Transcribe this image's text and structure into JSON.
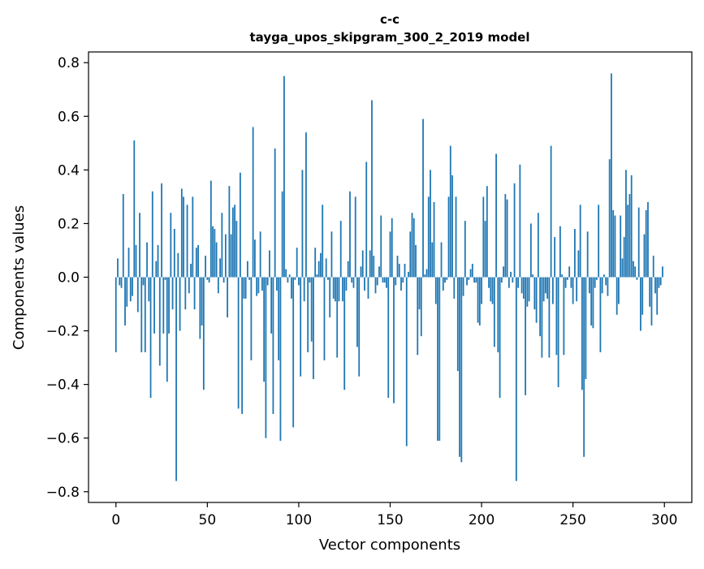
{
  "chart_data": {
    "type": "bar",
    "title_line1": "c-c",
    "title_line2": "tayga_upos_skipgram_300_2_2019 model",
    "xlabel": "Vector components",
    "ylabel": "Components values",
    "xlim": [
      -15,
      315
    ],
    "ylim": [
      -0.84,
      0.84
    ],
    "x_ticks": [
      0,
      50,
      100,
      150,
      200,
      250,
      300
    ],
    "x_tick_labels": [
      "0",
      "50",
      "100",
      "150",
      "200",
      "250",
      "300"
    ],
    "y_ticks": [
      0.8,
      0.6,
      0.4,
      0.2,
      0.0,
      -0.2,
      -0.4,
      -0.6,
      -0.8
    ],
    "y_tick_labels": [
      "0.8",
      "0.6",
      "0.4",
      "0.2",
      "0.0",
      "−0.2",
      "−0.4",
      "−0.6",
      "−0.8"
    ],
    "bar_color": "#1f77b4",
    "grid": false,
    "x": "0..299",
    "values": [
      -0.28,
      0.07,
      -0.03,
      -0.04,
      0.31,
      -0.18,
      -0.11,
      0.11,
      -0.09,
      -0.07,
      0.51,
      0.12,
      -0.13,
      0.24,
      -0.28,
      -0.03,
      -0.28,
      0.13,
      -0.09,
      -0.45,
      0.32,
      -0.21,
      0.06,
      0.12,
      -0.33,
      0.35,
      -0.21,
      -0.01,
      -0.39,
      -0.21,
      0.24,
      -0.12,
      0.18,
      -0.76,
      0.09,
      -0.2,
      0.33,
      0.3,
      -0.12,
      0.27,
      -0.06,
      0.05,
      0.3,
      -0.12,
      0.11,
      0.12,
      -0.23,
      -0.18,
      -0.42,
      0.08,
      -0.01,
      -0.02,
      0.36,
      0.19,
      0.18,
      0.13,
      -0.06,
      0.07,
      0.24,
      -0.02,
      0.16,
      -0.15,
      0.34,
      0.16,
      0.26,
      0.27,
      0.21,
      -0.49,
      0.39,
      -0.51,
      -0.08,
      -0.08,
      0.06,
      -0.01,
      -0.31,
      0.56,
      0.14,
      -0.07,
      -0.06,
      0.17,
      -0.05,
      -0.39,
      -0.6,
      -0.03,
      0.1,
      -0.21,
      -0.51,
      0.48,
      -0.05,
      -0.31,
      -0.61,
      0.32,
      0.75,
      0.03,
      -0.02,
      0.01,
      -0.08,
      -0.56,
      -0.01,
      0.11,
      -0.03,
      -0.37,
      0.4,
      -0.09,
      0.54,
      -0.28,
      -0.02,
      -0.24,
      -0.38,
      0.11,
      0.01,
      0.06,
      0.09,
      0.27,
      -0.31,
      0.07,
      -0.01,
      -0.15,
      0.17,
      -0.08,
      -0.09,
      -0.3,
      -0.09,
      0.21,
      -0.09,
      -0.42,
      -0.05,
      0.06,
      0.32,
      -0.02,
      -0.04,
      0.3,
      -0.26,
      -0.37,
      0.04,
      0.1,
      -0.05,
      0.43,
      -0.08,
      0.1,
      0.66,
      0.08,
      -0.06,
      -0.03,
      0.04,
      0.23,
      -0.02,
      -0.02,
      -0.04,
      -0.45,
      0.17,
      0.22,
      -0.47,
      -0.03,
      0.08,
      0.05,
      -0.05,
      -0.02,
      0.05,
      -0.63,
      0.02,
      0.17,
      0.24,
      0.22,
      0.12,
      -0.29,
      -0.12,
      -0.22,
      0.59,
      0.01,
      0.03,
      0.3,
      0.4,
      0.13,
      0.28,
      -0.1,
      -0.61,
      -0.61,
      0.13,
      -0.05,
      -0.02,
      -0.01,
      0.3,
      0.49,
      0.38,
      -0.08,
      0.3,
      -0.35,
      -0.67,
      -0.69,
      -0.07,
      0.21,
      -0.03,
      -0.01,
      0.03,
      0.05,
      -0.02,
      -0.02,
      -0.17,
      -0.18,
      -0.1,
      0.3,
      0.21,
      0.34,
      -0.04,
      -0.09,
      -0.1,
      -0.26,
      0.46,
      -0.28,
      -0.45,
      -0.02,
      0.04,
      0.31,
      0.29,
      -0.04,
      0.02,
      -0.02,
      0.35,
      -0.76,
      -0.04,
      0.42,
      -0.06,
      -0.08,
      -0.44,
      -0.11,
      -0.09,
      0.2,
      0.01,
      -0.12,
      -0.17,
      0.24,
      -0.22,
      -0.3,
      -0.09,
      -0.06,
      -0.08,
      -0.3,
      0.49,
      -0.1,
      0.15,
      -0.29,
      -0.41,
      0.19,
      0.01,
      -0.29,
      -0.04,
      -0.01,
      0.04,
      -0.04,
      -0.1,
      0.18,
      -0.09,
      0.1,
      0.27,
      -0.42,
      -0.67,
      -0.38,
      0.17,
      -0.06,
      -0.18,
      -0.19,
      -0.04,
      -0.01,
      0.27,
      -0.28,
      -0.06,
      0.01,
      -0.03,
      -0.07,
      0.44,
      0.76,
      0.25,
      0.23,
      -0.14,
      -0.1,
      0.23,
      0.07,
      0.15,
      0.4,
      0.27,
      0.31,
      0.38,
      0.06,
      0.04,
      -0.01,
      0.26,
      -0.2,
      -0.14,
      0.16,
      0.25,
      0.28,
      -0.11,
      -0.18,
      0.08,
      -0.06,
      -0.14,
      -0.04,
      -0.03,
      0.04
    ]
  }
}
